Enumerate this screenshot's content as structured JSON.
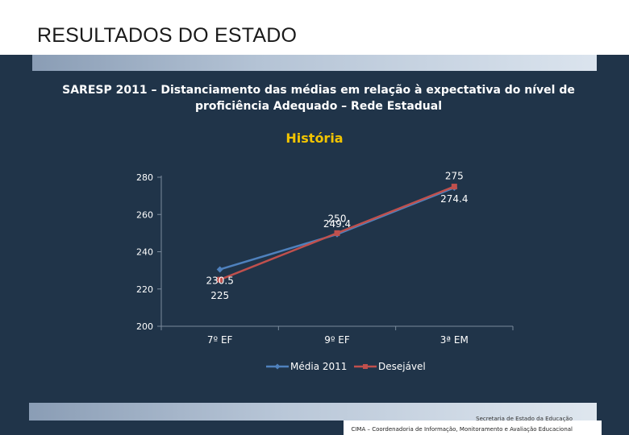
{
  "header": {
    "title": "RESULTADOS DO ESTADO"
  },
  "chart_data": {
    "type": "line",
    "title_line1": "SARESP 2011 –  Distanciamento das médias em relação à expectativa do nível de",
    "title_line2": "proficiência  Adequado – Rede Estadual",
    "subtitle": "História",
    "categories": [
      "7º EF",
      "9º EF",
      "3ª EM"
    ],
    "ylim": [
      200,
      280
    ],
    "yticks": [
      200,
      220,
      240,
      260,
      280
    ],
    "grid": false,
    "legend_position": "bottom",
    "series": [
      {
        "name": "Média 2011",
        "values": [
          230.5,
          249.4,
          274.4
        ],
        "color": "#4f81bd",
        "marker": "diamond",
        "labels": [
          "230.5",
          "249.4",
          "274.4"
        ]
      },
      {
        "name": "Desejável",
        "values": [
          225,
          250,
          275
        ],
        "color": "#c0504d",
        "marker": "square",
        "labels": [
          "225",
          "250",
          "275"
        ]
      }
    ]
  },
  "footer": {
    "line1": "Secretaria de Estado da Educação",
    "line2": "CIMA – Coordenadoria de Informação, Monitoramento e Avaliação Educacional"
  }
}
